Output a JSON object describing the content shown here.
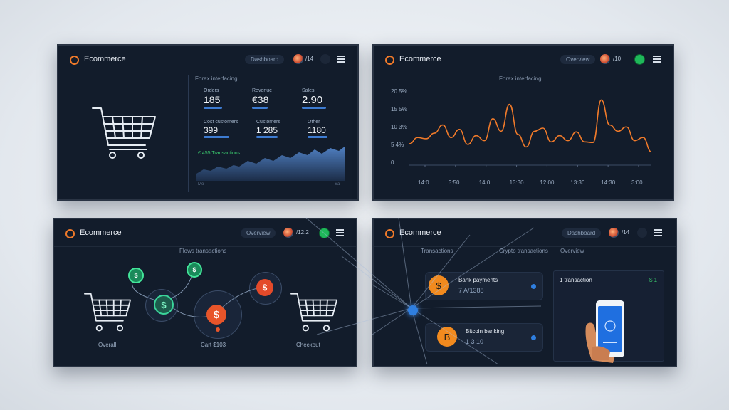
{
  "brand": "Ecommerce",
  "colors": {
    "accent_orange": "#f07a2a",
    "accent_green": "#1fb85a",
    "accent_blue": "#3d7bd1",
    "panel_bg": "#121c2b"
  },
  "panel1": {
    "header": {
      "title": "Ecommerce",
      "pill": "Dashboard",
      "user_value": "/14"
    },
    "section_title": "Forex interfacing",
    "metrics": [
      {
        "label": "Orders",
        "value": "185"
      },
      {
        "label": "Revenue",
        "value": "€38"
      },
      {
        "label": "Sales",
        "value": "2.90"
      },
      {
        "label": "Cost customers",
        "value": "399"
      },
      {
        "label": "Customers",
        "value": "1 285"
      },
      {
        "label": "Other",
        "value": "1180"
      }
    ],
    "area_legend": "€ 455 Transactions",
    "cart_icon": "shopping-cart-icon"
  },
  "panel2": {
    "header": {
      "title": "Ecommerce",
      "pill": "Overview",
      "user_value": "/10"
    },
    "chart_title": "Forex interfacing",
    "chart_data": {
      "type": "line",
      "y_ticks": [
        "20 5%",
        "15 5%",
        "10 3%",
        "5 4%",
        "0"
      ],
      "x_ticks": [
        "14:0",
        "3:50",
        "14:0",
        "13:30",
        "12:00",
        "13:30",
        "14:30",
        "3:00"
      ],
      "values": [
        25,
        35,
        33,
        42,
        55,
        35,
        48,
        24,
        38,
        30,
        65,
        45,
        88,
        40,
        20,
        45,
        50,
        28,
        38,
        30,
        44,
        28,
        27,
        95,
        55,
        45,
        52,
        30,
        35,
        12
      ]
    }
  },
  "panel3": {
    "header": {
      "title": "Ecommerce",
      "pill": "Overview",
      "user_value": "/12.2"
    },
    "section_title": "Flows transactions",
    "labels": {
      "left": "Overall",
      "middle": "Cart $103",
      "right": "Checkout"
    },
    "coin_symbol": "$"
  },
  "panel4": {
    "header": {
      "title": "Ecommerce",
      "pill": "Dashboard",
      "user_value": "/14"
    },
    "col_titles": [
      "Transactions",
      "Crypto transactions",
      "Overview"
    ],
    "cards": [
      {
        "coin": "$",
        "title": "Bank payments",
        "value": "7 A/1388"
      },
      {
        "coin": "B",
        "title": "Bitcoin banking",
        "value": "1 3 10"
      }
    ],
    "side_panel": {
      "title": "1 transaction",
      "value": "$ 1"
    },
    "phone_icon": "smartphone-icon"
  }
}
